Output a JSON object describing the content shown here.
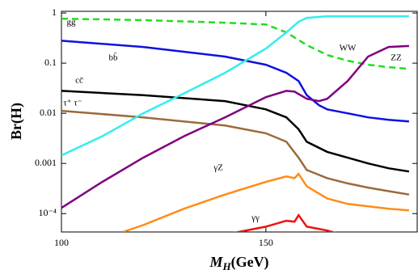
{
  "chart_data": {
    "type": "line",
    "ylabel": "Br(H)",
    "xlabel": {
      "main": "M",
      "sub": "H",
      "unit": "(GeV)"
    },
    "xlim": [
      100,
      187
    ],
    "xticks": [
      100,
      150
    ],
    "ylim": [
      4.3e-05,
      1.08
    ],
    "log_y": true,
    "yticks": [
      1,
      0.1,
      0.01,
      0.001,
      {
        "value": 0.0001,
        "label": "10⁻⁴"
      }
    ],
    "grid": false,
    "series": [
      {
        "name": "gg",
        "color": "#22dd22",
        "dashed": true,
        "x": [
          100,
          120,
          140,
          150,
          155,
          160,
          165,
          170,
          175,
          180,
          185
        ],
        "values": [
          0.77,
          0.72,
          0.64,
          0.59,
          0.41,
          0.23,
          0.145,
          0.112,
          0.093,
          0.083,
          0.077
        ]
      },
      {
        "name": "bb̄",
        "color": "#1010e0",
        "dashed": false,
        "x": [
          100,
          120,
          140,
          150,
          155,
          158,
          160,
          163,
          165,
          170,
          175,
          180,
          185
        ],
        "values": [
          0.28,
          0.21,
          0.135,
          0.093,
          0.064,
          0.044,
          0.023,
          0.0145,
          0.012,
          0.01,
          0.0083,
          0.0074,
          0.0069
        ]
      },
      {
        "name": "cc̄",
        "color": "#000000",
        "dashed": false,
        "x": [
          100,
          120,
          140,
          150,
          155,
          158,
          160,
          165,
          170,
          175,
          180,
          185
        ],
        "values": [
          0.028,
          0.023,
          0.0175,
          0.012,
          0.0083,
          0.0048,
          0.0027,
          0.0017,
          0.0013,
          0.001,
          0.0008,
          0.00069
        ]
      },
      {
        "name": "τ⁺ τ⁻",
        "color": "#9b6a3a",
        "dashed": false,
        "x": [
          100,
          120,
          140,
          150,
          155,
          158,
          160,
          165,
          170,
          175,
          180,
          185
        ],
        "values": [
          0.0112,
          0.0083,
          0.0057,
          0.004,
          0.0027,
          0.0013,
          0.00074,
          0.00051,
          0.0004,
          0.00033,
          0.00028,
          0.00024
        ]
      },
      {
        "name": "WW",
        "color": "#33eeee",
        "dashed": false,
        "x": [
          100,
          110,
          120,
          130,
          140,
          150,
          155,
          158,
          160,
          165,
          170,
          185
        ],
        "values": [
          0.00145,
          0.0035,
          0.01,
          0.025,
          0.064,
          0.195,
          0.41,
          0.67,
          0.8,
          0.86,
          0.86,
          0.86
        ]
      },
      {
        "name": "ZZ",
        "color": "#800080",
        "dashed": false,
        "x": [
          100,
          110,
          120,
          130,
          140,
          150,
          155,
          157,
          160,
          163,
          165,
          170,
          175,
          180,
          185
        ],
        "values": [
          0.00013,
          0.00043,
          0.0013,
          0.0035,
          0.0083,
          0.021,
          0.028,
          0.027,
          0.0195,
          0.0175,
          0.0195,
          0.044,
          0.135,
          0.21,
          0.22
        ]
      },
      {
        "name": "γZ",
        "color": "#ff8c1a",
        "dashed": false,
        "x": [
          115,
          120,
          130,
          140,
          150,
          155,
          157,
          158,
          160,
          165,
          170,
          180,
          185
        ],
        "values": [
          4.3e-05,
          5.9e-05,
          0.000125,
          0.00024,
          0.00043,
          0.00055,
          0.00051,
          0.00062,
          0.00035,
          0.0002,
          0.000156,
          0.000125,
          0.000116
        ]
      },
      {
        "name": "γγ",
        "color": "#ee1111",
        "dashed": false,
        "x": [
          140,
          150,
          155,
          157,
          158,
          160,
          165,
          170
        ],
        "values": [
          3.8e-05,
          5.5e-05,
          7.2e-05,
          6.9e-05,
          9.3e-05,
          5.5e-05,
          4.6e-05,
          3.5e-05
        ]
      }
    ]
  }
}
